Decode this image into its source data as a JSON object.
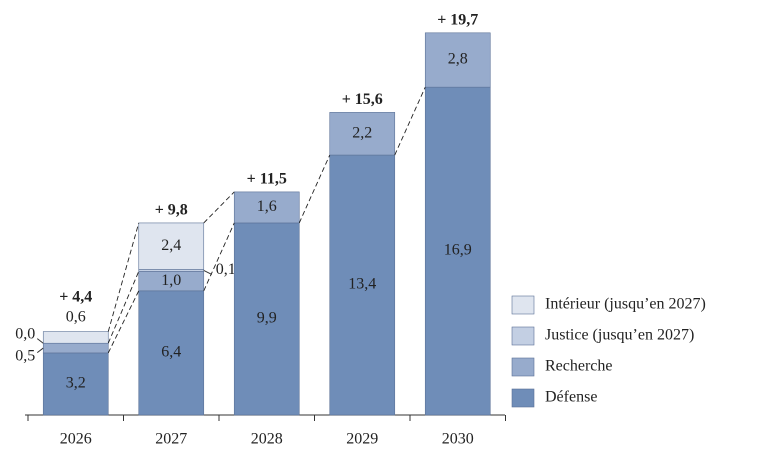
{
  "chart_data": {
    "type": "stacked-bar",
    "categories": [
      "2026",
      "2027",
      "2028",
      "2029",
      "2030"
    ],
    "series": [
      {
        "name": "Défense",
        "color": "#6f8db8",
        "values": [
          3.2,
          6.4,
          9.9,
          13.4,
          16.9
        ],
        "value_labels": [
          "3,2",
          "6,4",
          "9,9",
          "13,4",
          "16,9"
        ]
      },
      {
        "name": "Recherche",
        "color": "#97abcc",
        "values": [
          0.5,
          1.0,
          1.6,
          2.2,
          2.8
        ],
        "value_labels": [
          "0,5",
          "1,0",
          "1,6",
          "2,2",
          "2,8"
        ]
      },
      {
        "name": "Justice (jusqu’en 2027)",
        "color": "#c3cfe3",
        "values": [
          0.0,
          0.1,
          null,
          null,
          null
        ],
        "value_labels": [
          "0,0",
          "0,1",
          null,
          null,
          null
        ]
      },
      {
        "name": "Intérieur (jusqu’en 2027)",
        "color": "#dfe5ef",
        "values": [
          0.6,
          2.4,
          null,
          null,
          null
        ],
        "value_labels": [
          "0,6",
          "2,4",
          null,
          null,
          null
        ]
      }
    ],
    "totals": {
      "values": [
        4.4,
        9.8,
        11.5,
        15.6,
        19.7
      ],
      "value_labels": [
        "+ 4,4",
        "+ 9,8",
        "+ 11,5",
        "+ 15,6",
        "+ 19,7"
      ]
    }
  }
}
